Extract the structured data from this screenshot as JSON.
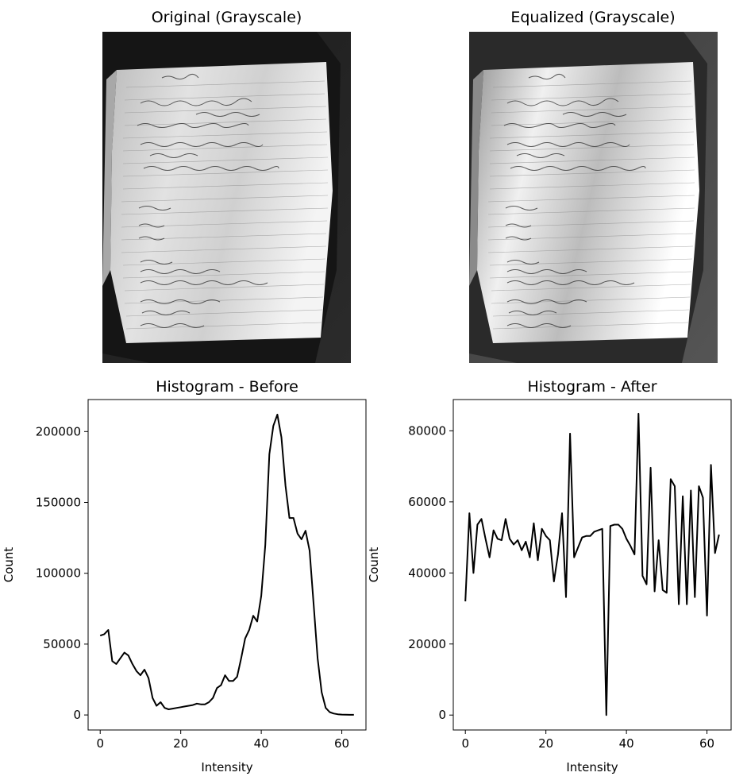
{
  "panels": {
    "original_title": "Original (Grayscale)",
    "equalized_title": "Equalized (Grayscale)"
  },
  "chart_data": [
    {
      "type": "line",
      "title": "Histogram - Before",
      "xlabel": "Intensity",
      "ylabel": "Count",
      "xlim": [
        -3,
        66
      ],
      "ylim": [
        -10600,
        222600
      ],
      "xticks": [
        0,
        20,
        40,
        60
      ],
      "yticks": [
        0,
        50000,
        100000,
        150000,
        200000
      ],
      "grid": false,
      "color": "#000000",
      "x": [
        0,
        1,
        2,
        3,
        4,
        5,
        6,
        7,
        8,
        9,
        10,
        11,
        12,
        13,
        14,
        15,
        16,
        17,
        18,
        19,
        20,
        21,
        22,
        23,
        24,
        25,
        26,
        27,
        28,
        29,
        30,
        31,
        32,
        33,
        34,
        35,
        36,
        37,
        38,
        39,
        40,
        41,
        42,
        43,
        44,
        45,
        46,
        47,
        48,
        49,
        50,
        51,
        52,
        53,
        54,
        55,
        56,
        57,
        58,
        59,
        60,
        61,
        62,
        63
      ],
      "y": [
        56000,
        57000,
        60000,
        38000,
        36000,
        40000,
        44000,
        42000,
        36000,
        31000,
        28000,
        32000,
        26000,
        12000,
        6500,
        9000,
        5000,
        4000,
        4500,
        5000,
        5500,
        6000,
        6500,
        7000,
        8000,
        7500,
        7500,
        9000,
        12000,
        19000,
        21000,
        28000,
        24000,
        24000,
        27000,
        40000,
        54000,
        60000,
        70000,
        66000,
        84000,
        120000,
        184000,
        204000,
        212000,
        196000,
        162000,
        139000,
        139000,
        128000,
        124000,
        130000,
        116000,
        78000,
        40000,
        16000,
        5000,
        2000,
        1000,
        500,
        300,
        200,
        100,
        100
      ]
    },
    {
      "type": "line",
      "title": "Histogram - After",
      "xlabel": "Intensity",
      "ylabel": "Count",
      "xlim": [
        -3,
        66
      ],
      "ylim": [
        -4200,
        88800
      ],
      "xticks": [
        0,
        20,
        40,
        60
      ],
      "yticks": [
        0,
        20000,
        40000,
        60000,
        80000
      ],
      "grid": false,
      "color": "#000000",
      "x": [
        0,
        1,
        2,
        3,
        4,
        5,
        6,
        7,
        8,
        9,
        10,
        11,
        12,
        13,
        14,
        15,
        16,
        17,
        18,
        19,
        20,
        21,
        22,
        23,
        24,
        25,
        26,
        27,
        28,
        29,
        30,
        31,
        32,
        33,
        34,
        35,
        36,
        37,
        38,
        39,
        40,
        41,
        42,
        43,
        44,
        45,
        46,
        47,
        48,
        49,
        50,
        51,
        52,
        53,
        54,
        55,
        56,
        57,
        58,
        59,
        60,
        61,
        62,
        63
      ],
      "y": [
        32000,
        56800,
        40000,
        53600,
        55200,
        49600,
        44400,
        52000,
        49600,
        49200,
        55200,
        49600,
        48000,
        49200,
        46400,
        48800,
        44400,
        54000,
        43600,
        52400,
        50400,
        49200,
        37600,
        45200,
        56800,
        33200,
        79200,
        44400,
        47200,
        50000,
        50400,
        50400,
        51600,
        52000,
        52400,
        0,
        53200,
        53600,
        53600,
        52400,
        49600,
        47600,
        45200,
        84800,
        39200,
        36800,
        69600,
        34800,
        49200,
        35200,
        34400,
        66400,
        64400,
        31200,
        61600,
        31200,
        63200,
        33200,
        64400,
        61200,
        28000,
        70400,
        45600,
        50800
      ]
    }
  ]
}
